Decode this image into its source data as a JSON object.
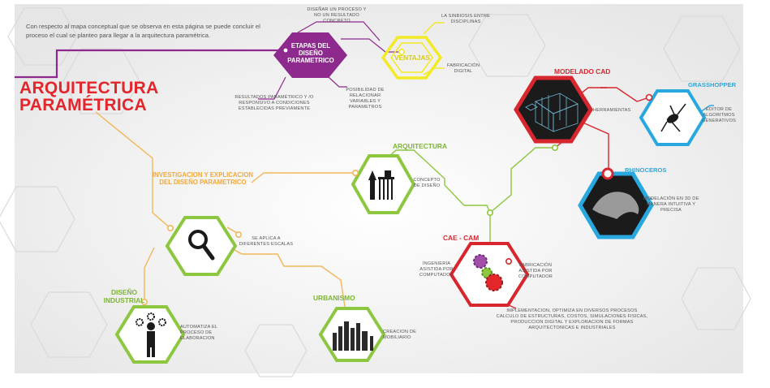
{
  "intro_text": "Con respecto al mapa conceptual que se observa en esta página se puede concluir el proceso el cual se planteo para llegar a la arquitectura paramétrica.",
  "main_title_line1": "ARQUITECTURA",
  "main_title_line2": "PARAMÉTRICA",
  "colors": {
    "purple": "#8e2a8e",
    "yellow": "#f2ea22",
    "red": "#d7262d",
    "orange": "#f3b75a",
    "green": "#8dc63f",
    "blue": "#29a8e0",
    "dark": "#1b1b1b"
  },
  "nodes": {
    "etapas": {
      "title_l1": "ETAPAS DEL",
      "title_l2": "DISEÑO",
      "title_l3": "PARAMETRICO",
      "note_top": "DISEÑAR UN PROCESO Y NO UN RESULTADO CONCRETO",
      "note_left": "RESULTADOS PARAMÉTRICO Y /O RESPONSIVO A CONDICIONES ESTABLECIDAS PREVIAMENTE",
      "note_right": "POSIBILIDAD DE RELACIONAR VARIABLES Y PARAMETROS"
    },
    "ventajas": {
      "title": "VENTAJAS",
      "note_top": "LA SINBIOSIS ENTRE DISCIPLINAS",
      "note_bottom": "FABRICACIÓN DIGITAL"
    },
    "modelado": {
      "title": "MODELADO CAD",
      "icon": "3d-wireframe-model-icon",
      "note": "HERRAMIENTAS"
    },
    "grasshopper": {
      "title": "GRASSHOPPER",
      "icon": "grasshopper-insect-icon",
      "note": "EDITOR DE ALGORITMOS GENERATIVOS"
    },
    "rhinoceros": {
      "title": "RHINOCEROS",
      "icon": "rhino-surface-icon",
      "note": "MODELACIÓN EN 3D DE MANERA INTUITIVA Y PRECISA"
    },
    "arquitectura": {
      "title": "ARQUITECTURA",
      "icon": "landmarks-buildings-icon",
      "note": "CONCEPTO DE DISEÑO"
    },
    "investigacion": {
      "title_l1": "INVESTIGACION Y EXPLICACION",
      "title_l2": "DEL DISEÑO PARAMETRICO",
      "icon": "magnifying-glass-icon",
      "note": "SE APLICA A DIFERENTES ESCALAS"
    },
    "caecam": {
      "title": "CAE - CAM",
      "icon": "gears-icon",
      "note_left": "INGENIERÍA ASISTIDA POR COMPUTADOR",
      "note_right": "FABRICACIÓN ASISTIDA POR COMPUTADOR",
      "note_bottom": "IMPLEMENTACION, OPTIMIZA EN DIVERSOS PROCESOS CALCULO DE ESTRUCTURAS, COSTOS, SIMULACIONES FISICAS, PRODUCCION DIGITAL Y EXPLORACION DE FORMAS ARQUITECTONICAS E INDUSTRIALES"
    },
    "diseno_industrial": {
      "title_l1": "DISEÑO",
      "title_l2": "INDUSTRIAL",
      "icon": "person-with-gears-icon",
      "note": "AUTOMATIZA EL PROCESO DE ELABORACION"
    },
    "urbanismo": {
      "title": "URBANISMO",
      "icon": "city-skyline-icon",
      "note": "CREACION DE MOBILIARIO"
    }
  }
}
